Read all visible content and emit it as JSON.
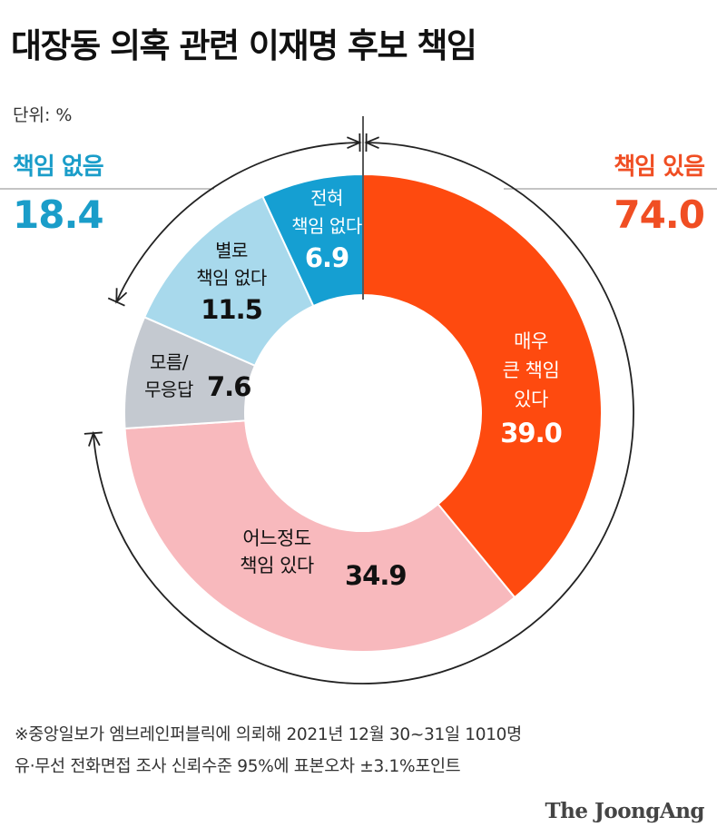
{
  "title": "대장동 의혹 관련 이재명 후보 책임",
  "unit_label": "단위: %",
  "summary": {
    "left": {
      "label": "책임 없음",
      "value": "18.4",
      "color": "#1a9dc9"
    },
    "right": {
      "label": "책임 있음",
      "value": "74.0",
      "color": "#f04e23"
    }
  },
  "chart_data": {
    "type": "pie",
    "variant": "donut",
    "unit": "%",
    "slices": [
      {
        "label_lines": [
          "매우",
          "큰 책임",
          "있다"
        ],
        "value": 39.0,
        "value_label": "39.0",
        "color": "#fe4a0f",
        "text_color": "#ffffff"
      },
      {
        "label_lines": [
          "어느정도",
          "책임 있다"
        ],
        "value": 34.9,
        "value_label": "34.9",
        "color": "#f8b9bd",
        "text_color": "#111111"
      },
      {
        "label_lines": [
          "모름/",
          "무응답"
        ],
        "value": 7.6,
        "value_label": "7.6",
        "color": "#c4c9d0",
        "text_color": "#111111"
      },
      {
        "label_lines": [
          "별로",
          "책임 없다"
        ],
        "value": 11.5,
        "value_label": "11.5",
        "color": "#a8d9ec",
        "text_color": "#111111"
      },
      {
        "label_lines": [
          "전혀",
          "책임 없다"
        ],
        "value": 6.9,
        "value_label": "6.9",
        "color": "#159fd2",
        "text_color": "#ffffff"
      }
    ],
    "groups": [
      {
        "name": "책임 있음",
        "value": 74.0
      },
      {
        "name": "책임 없음",
        "value": 18.4
      }
    ]
  },
  "footnote": {
    "line1": "※중앙일보가 엠브레인퍼블릭에 의뢰해 2021년 12월 30~31일 1010명",
    "line2": "유·무선 전화면접 조사 신뢰수준 95%에 표본오차 ±3.1%포인트"
  },
  "brand": "The JoongAng"
}
